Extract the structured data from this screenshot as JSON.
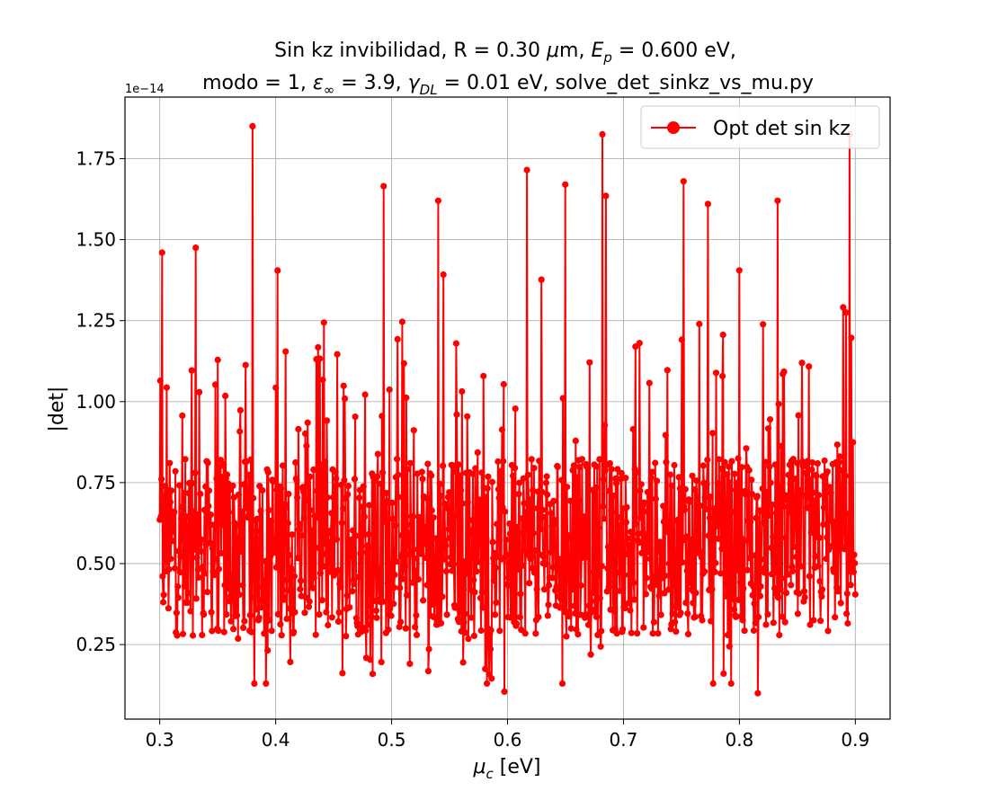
{
  "chart_data": {
    "type": "line",
    "title_line1": "Sin kz invibilidad, R = 0.30 μm, E_p = 0.600 eV,",
    "title_line2": "modo = 1, ε_∞ = 3.9, γ_DL = 0.01 eV, solve_det_sinkz_vs_mu.py",
    "xlabel": "μ_c [eV]",
    "ylabel": "|det|",
    "y_offset_text": "1e−14",
    "xlim": [
      0.27,
      0.93
    ],
    "ylim": [
      0.02,
      1.94
    ],
    "x_ticks": [
      0.3,
      0.4,
      0.5,
      0.6,
      0.7,
      0.8,
      0.9
    ],
    "x_tick_labels": [
      "0.3",
      "0.4",
      "0.5",
      "0.6",
      "0.7",
      "0.8",
      "0.9"
    ],
    "y_ticks": [
      0.25,
      0.5,
      0.75,
      1.0,
      1.25,
      1.5,
      1.75
    ],
    "y_tick_labels": [
      "0.25",
      "0.50",
      "0.75",
      "1.00",
      "1.25",
      "1.50",
      "1.75"
    ],
    "grid": true,
    "legend_position": "top-right",
    "series": [
      {
        "name": "Opt det sin kz",
        "color": "#ff0000",
        "marker": "circle",
        "x_start": 0.3,
        "x_end": 0.9,
        "n_points": 1200,
        "values_approx_range": [
          0.1,
          1.85
        ],
        "notable_points": [
          {
            "x": 0.302,
            "y": 1.46
          },
          {
            "x": 0.331,
            "y": 1.475
          },
          {
            "x": 0.38,
            "y": 1.85
          },
          {
            "x": 0.493,
            "y": 1.665
          },
          {
            "x": 0.54,
            "y": 1.62
          },
          {
            "x": 0.597,
            "y": 0.105
          },
          {
            "x": 0.617,
            "y": 1.715
          },
          {
            "x": 0.65,
            "y": 1.67
          },
          {
            "x": 0.682,
            "y": 1.825
          },
          {
            "x": 0.685,
            "y": 1.635
          },
          {
            "x": 0.752,
            "y": 1.68
          },
          {
            "x": 0.773,
            "y": 1.61
          },
          {
            "x": 0.816,
            "y": 0.1
          },
          {
            "x": 0.833,
            "y": 1.62
          },
          {
            "x": 0.895,
            "y": 1.825
          }
        ]
      }
    ]
  }
}
